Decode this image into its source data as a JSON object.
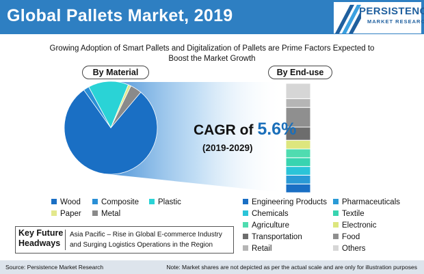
{
  "header": {
    "title": "Global Pallets Market, 2019",
    "logo_main": "PERSISTENCE",
    "logo_sub": "MARKET RESEARCH",
    "bar_color": "#2e7fc2"
  },
  "subtitle": {
    "line1": "Growing Adoption of Smart Pallets and Digitalization of Pallets are Prime Factors Expected to",
    "line2": "Boost the Market Growth"
  },
  "cagr": {
    "prefix": "CAGR of ",
    "value": "5.6%",
    "period": "(2019-2029)"
  },
  "chart_data": [
    {
      "type": "pie",
      "title": "By Material",
      "series": [
        {
          "name": "Wood",
          "value": 79,
          "color": "#1a6fc4"
        },
        {
          "name": "Composite",
          "value": 2,
          "color": "#2a8fd6"
        },
        {
          "name": "Plastic",
          "value": 14,
          "color": "#2ad3d6"
        },
        {
          "name": "Paper",
          "value": 1,
          "color": "#e3e88d"
        },
        {
          "name": "Metal",
          "value": 4,
          "color": "#8a8a8a"
        }
      ]
    },
    {
      "type": "bar",
      "title": "By End-use",
      "stacked": true,
      "series": [
        {
          "name": "Engineering Products",
          "value": 8,
          "color": "#1a6fc4"
        },
        {
          "name": "Pharmaceuticals",
          "value": 8,
          "color": "#2a9ad6"
        },
        {
          "name": "Chemicals",
          "value": 8,
          "color": "#2bc4d8"
        },
        {
          "name": "Textile",
          "value": 8,
          "color": "#38d4b0"
        },
        {
          "name": "Agriculture",
          "value": 8,
          "color": "#4fdcb0"
        },
        {
          "name": "Electronic",
          "value": 8,
          "color": "#dde67e"
        },
        {
          "name": "Transportation",
          "value": 12,
          "color": "#6d6d6d"
        },
        {
          "name": "Food",
          "value": 18,
          "color": "#8f8f8f"
        },
        {
          "name": "Retail",
          "value": 8,
          "color": "#b5b5b5"
        },
        {
          "name": "Others",
          "value": 14,
          "color": "#d6d6d6"
        }
      ]
    }
  ],
  "material_legend": [
    {
      "label": "Wood",
      "color": "#1a6fc4"
    },
    {
      "label": "Composite",
      "color": "#2a8fd6"
    },
    {
      "label": "Plastic",
      "color": "#2ad3d6"
    },
    {
      "label": "Paper",
      "color": "#e3e88d"
    },
    {
      "label": "Metal",
      "color": "#8a8a8a"
    }
  ],
  "enduse_legend": [
    {
      "label": "Engineering Products",
      "color": "#1a6fc4"
    },
    {
      "label": "Pharmaceuticals",
      "color": "#2a9ad6"
    },
    {
      "label": "Chemicals",
      "color": "#2bc4d8"
    },
    {
      "label": "Textile",
      "color": "#38d4b0"
    },
    {
      "label": "Agriculture",
      "color": "#4fdcb0"
    },
    {
      "label": "Electronic",
      "color": "#dde67e"
    },
    {
      "label": "Transportation",
      "color": "#6d6d6d"
    },
    {
      "label": "Food",
      "color": "#8f8f8f"
    },
    {
      "label": "Retail",
      "color": "#b5b5b5"
    },
    {
      "label": "Others",
      "color": "#d6d6d6"
    }
  ],
  "key_future": {
    "label": "Key Future Headways",
    "text": "Asia Pacific – Rise in Global E-commerce Industry and Surging Logistics Operations in the Region"
  },
  "footer": {
    "source": "Source: Persistence Market Research",
    "note": "Note: Market shares are not depicted as per the actual scale and are only for illustration purposes"
  }
}
